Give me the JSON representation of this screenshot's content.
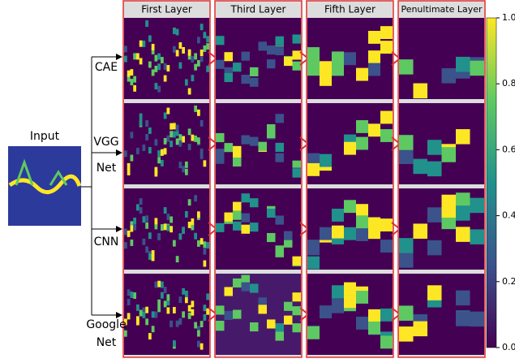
{
  "input": {
    "label": "Input"
  },
  "columns": [
    "First Layer",
    "Third Layer",
    "Fifth Layer",
    "Penultimate Layer"
  ],
  "models": [
    [
      "CAE"
    ],
    [
      "VGG",
      "Net"
    ],
    [
      "CNN"
    ],
    [
      "Google",
      "Net"
    ]
  ],
  "colorbar": {
    "ticks": [
      {
        "value": 0,
        "label": "0.0"
      },
      {
        "value": 0.2,
        "label": "0.2"
      },
      {
        "value": 0.4,
        "label": "0.4"
      },
      {
        "value": 0.6,
        "label": "0.6"
      },
      {
        "value": 0.8,
        "label": "0.8"
      },
      {
        "value": 1,
        "label": "1.0"
      }
    ]
  }
}
